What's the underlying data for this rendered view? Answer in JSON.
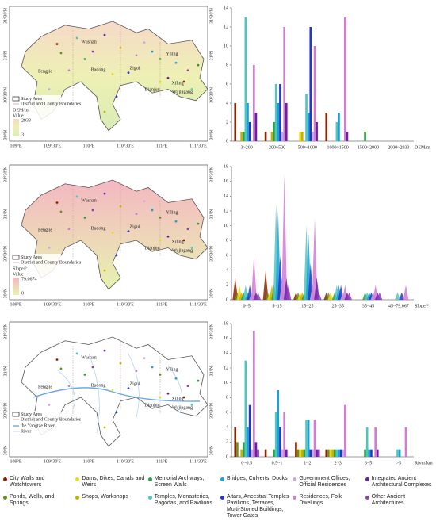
{
  "legend": [
    {
      "name": "City Walls and Watchtowers",
      "color": "#8b2500"
    },
    {
      "name": "Ponds, Wells, and Springs",
      "color": "#6b8e23"
    },
    {
      "name": "Dams, Dikes, Canals and Weirs",
      "color": "#e6dc14"
    },
    {
      "name": "Shops, Workshops",
      "color": "#c9b000"
    },
    {
      "name": "Memorial Archways, Screen Walls",
      "color": "#2e9e3e"
    },
    {
      "name": "Temples, Monasteries, Pagodas, and Pavilions",
      "color": "#48c9c0"
    },
    {
      "name": "Bridges, Culverts, Docks",
      "color": "#1e9ed2"
    },
    {
      "name": "Altars, Ancestral Temples Pavilions, Terraces, Multi-Storied Buildings, Tower Gates",
      "color": "#2438c8"
    },
    {
      "name": "Government Offices, Official Residences",
      "color": "#c9a8e8"
    },
    {
      "name": "Residences, Folk Dwellings",
      "color": "#d27ad6"
    },
    {
      "name": "Integrated Ancient Architectural Complexes",
      "color": "#6a1fa8"
    },
    {
      "name": "Other Ancient Architectures",
      "color": "#8e3fb8"
    }
  ],
  "map_common": {
    "lon_ticks": [
      "109°E",
      "109°30'E",
      "110°E",
      "110°30'E",
      "111°E",
      "111°30'E"
    ],
    "lat_ticks": [
      "31°30'N",
      "31°N",
      "30°30'N",
      "30°N"
    ],
    "places": [
      "Wushan",
      "Fengjie",
      "Badong",
      "Zigui",
      "Yiling",
      "Dianjun",
      "Xiling",
      "Wujiagang"
    ]
  },
  "maps": [
    {
      "study_area": "Study Area",
      "boundaries": "District and County Boundaries",
      "ramp_title": "DEM/m",
      "ramp_subtitle": "Value",
      "ramp_high": "2933",
      "ramp_low": "3"
    },
    {
      "study_area": "Study Area",
      "boundaries": "District and County Boundaries",
      "ramp_title": "Slope/°",
      "ramp_subtitle": "Value",
      "ramp_high": "79.0674",
      "ramp_low": "0"
    },
    {
      "study_area": "Study Area",
      "boundaries": "District and County Boundaries",
      "river_main": "the Yangtze River",
      "river": "River"
    }
  ],
  "chart_data": [
    {
      "type": "bar",
      "x_label": "DEM/m",
      "categories": [
        "3~200",
        "200~500",
        "500~1000",
        "1000~1500",
        "1500~2000",
        "2000~2933"
      ],
      "ylim": [
        0,
        14
      ],
      "yticks": [
        0,
        2,
        4,
        6,
        8,
        10,
        12,
        14
      ],
      "series": [
        {
          "values": [
            4,
            1,
            0,
            3,
            0,
            0
          ]
        },
        {
          "values": [
            0,
            0,
            0,
            0,
            0,
            0
          ]
        },
        {
          "values": [
            0,
            0,
            1,
            0,
            0,
            0
          ]
        },
        {
          "values": [
            1,
            1,
            1,
            0,
            0,
            0
          ]
        },
        {
          "values": [
            1,
            2,
            0,
            0,
            1,
            0
          ]
        },
        {
          "values": [
            13,
            6,
            5,
            2,
            0,
            0
          ]
        },
        {
          "values": [
            4,
            4,
            3,
            3,
            0,
            0
          ]
        },
        {
          "values": [
            2,
            6,
            12,
            0,
            0,
            0
          ]
        },
        {
          "values": [
            0,
            1,
            1,
            0,
            0,
            0
          ]
        },
        {
          "values": [
            8,
            12,
            10,
            13,
            0,
            0
          ]
        },
        {
          "values": [
            3,
            4,
            2,
            1,
            0,
            0
          ]
        },
        {
          "values": [
            0,
            0,
            0,
            0,
            0,
            0
          ]
        }
      ]
    },
    {
      "type": "area",
      "x_label": "Slope/°",
      "categories": [
        "0~5",
        "5~15",
        "15~25",
        "25~35",
        "35~45",
        "45~79.067"
      ],
      "ylim": [
        0,
        18
      ],
      "yticks": [
        0,
        2,
        4,
        6,
        8,
        10,
        12,
        14,
        16,
        18
      ],
      "series": [
        {
          "values": [
            3,
            4,
            1,
            1,
            0,
            0
          ]
        },
        {
          "values": [
            1,
            1,
            1,
            1,
            0,
            0
          ]
        },
        {
          "values": [
            2,
            1,
            1,
            1,
            0,
            0
          ]
        },
        {
          "values": [
            1,
            2,
            1,
            0,
            0,
            0
          ]
        },
        {
          "values": [
            1,
            2,
            1,
            1,
            1,
            0
          ]
        },
        {
          "values": [
            2,
            13,
            10,
            2,
            1,
            1
          ]
        },
        {
          "values": [
            1,
            12,
            9,
            2,
            1,
            0
          ]
        },
        {
          "values": [
            2,
            6,
            5,
            2,
            1,
            1
          ]
        },
        {
          "values": [
            1,
            3,
            2,
            1,
            1,
            0
          ]
        },
        {
          "values": [
            6,
            17,
            11,
            2,
            2,
            2
          ]
        },
        {
          "values": [
            1,
            3,
            3,
            1,
            1,
            0
          ]
        },
        {
          "values": [
            1,
            2,
            1,
            1,
            1,
            0
          ]
        }
      ]
    },
    {
      "type": "bar",
      "x_label": "River/km",
      "categories": [
        "0~0.5",
        "0.5~1",
        "1~2",
        "2~3",
        "3~5",
        ">5"
      ],
      "ylim": [
        0,
        18
      ],
      "yticks": [
        0,
        2,
        4,
        6,
        8,
        10,
        12,
        14,
        16,
        18
      ],
      "series": [
        {
          "values": [
            4,
            1,
            2,
            1,
            0,
            0
          ]
        },
        {
          "values": [
            2,
            0,
            1,
            1,
            0,
            0
          ]
        },
        {
          "values": [
            0,
            0,
            1,
            1,
            0,
            0
          ]
        },
        {
          "values": [
            1,
            0,
            1,
            1,
            0,
            0
          ]
        },
        {
          "values": [
            2,
            1,
            1,
            1,
            1,
            0
          ]
        },
        {
          "values": [
            13,
            6,
            5,
            1,
            4,
            1
          ]
        },
        {
          "values": [
            4,
            9,
            5,
            1,
            1,
            1
          ]
        },
        {
          "values": [
            7,
            4,
            1,
            1,
            1,
            0
          ]
        },
        {
          "values": [
            1,
            1,
            1,
            1,
            0,
            0
          ]
        },
        {
          "values": [
            17,
            6,
            5,
            7,
            4,
            4
          ]
        },
        {
          "values": [
            2,
            1,
            1,
            0,
            1,
            0
          ]
        },
        {
          "values": [
            1,
            0,
            1,
            0,
            0,
            0
          ]
        }
      ]
    }
  ]
}
